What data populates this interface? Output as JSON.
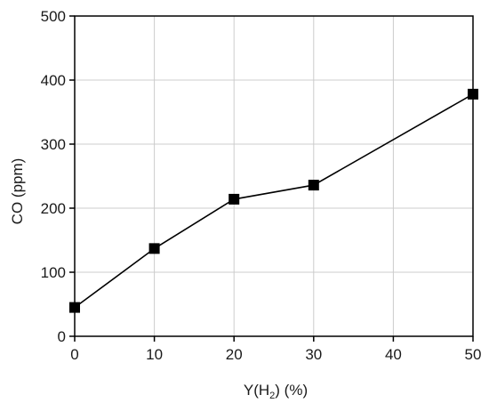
{
  "chart_data": {
    "type": "line",
    "xlabel": {
      "prefix": "Y(H",
      "subscript": "2",
      "suffix": ") (%)"
    },
    "ylabel": "CO (ppm)",
    "xlim": [
      0,
      50
    ],
    "ylim": [
      0,
      500
    ],
    "xticks": [
      0,
      10,
      20,
      30,
      40,
      50
    ],
    "yticks": [
      0,
      100,
      200,
      300,
      400,
      500
    ],
    "grid": true,
    "marker": "square",
    "line_color": "#000000",
    "series": [
      {
        "x": [
          0,
          10,
          20,
          30,
          50
        ],
        "y": [
          45,
          137,
          214,
          236,
          378
        ]
      }
    ]
  }
}
